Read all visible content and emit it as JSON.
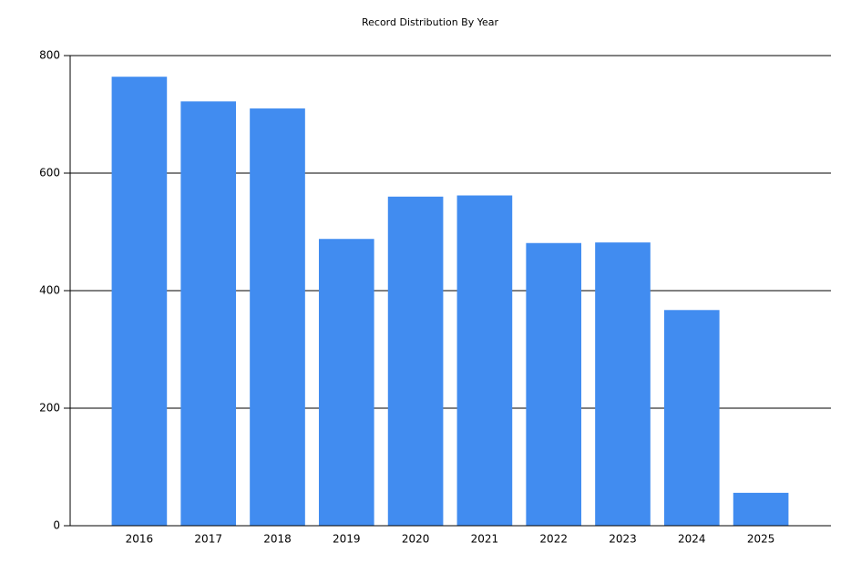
{
  "chart_data": {
    "type": "bar",
    "title": "Record Distribution By Year",
    "categories": [
      "2016",
      "2017",
      "2018",
      "2019",
      "2020",
      "2021",
      "2022",
      "2023",
      "2024",
      "2025"
    ],
    "values": [
      764,
      722,
      710,
      488,
      560,
      562,
      481,
      482,
      367,
      56
    ],
    "color": "#418cf0",
    "ylim": [
      0,
      800
    ],
    "yticks": [
      0,
      200,
      400,
      600,
      800
    ],
    "grid": true
  }
}
